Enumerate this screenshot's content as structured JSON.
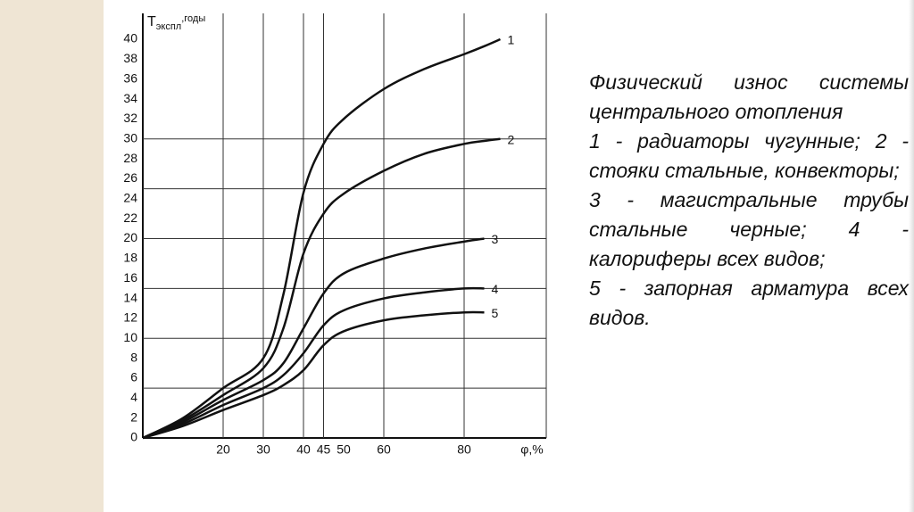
{
  "chart_data": {
    "type": "line",
    "y_label": "Т",
    "y_label_sub": "экспл",
    "y_label_unit": ",годы",
    "x_label": "φ,%",
    "x": [
      0,
      10,
      20,
      30,
      35,
      40,
      45,
      50,
      60,
      70,
      80,
      85,
      89
    ],
    "series": [
      {
        "name": "1",
        "color": "#111111",
        "values": [
          0,
          2,
          5,
          8,
          14.4,
          24.6,
          29.5,
          32,
          35,
          37,
          38.5,
          39.3,
          40
        ]
      },
      {
        "name": "2",
        "color": "#111111",
        "values": [
          0,
          1.8,
          4.3,
          7,
          11,
          18.5,
          22.5,
          24.5,
          26.8,
          28.5,
          29.5,
          29.8,
          30
        ]
      },
      {
        "name": "3",
        "color": "#111111",
        "values": [
          0,
          1.6,
          3.8,
          5.8,
          7.5,
          11,
          14.5,
          16.5,
          18,
          19,
          19.7,
          20,
          null
        ]
      },
      {
        "name": "4",
        "color": "#111111",
        "values": [
          0,
          1.4,
          3.3,
          5,
          6.3,
          8.5,
          11.3,
          12.8,
          14,
          14.6,
          15,
          15,
          null
        ]
      },
      {
        "name": "5",
        "color": "#111111",
        "values": [
          0,
          1.2,
          2.8,
          4.3,
          5.3,
          6.8,
          9.3,
          10.7,
          11.8,
          12.3,
          12.6,
          12.6,
          null
        ]
      }
    ],
    "xlim": [
      0,
      100
    ],
    "ylim": [
      0,
      40
    ],
    "xticks": [
      20,
      30,
      40,
      45,
      50,
      60,
      80
    ],
    "yticks": [
      0,
      2,
      4,
      6,
      8,
      10,
      12,
      14,
      16,
      18,
      20,
      22,
      24,
      26,
      28,
      30,
      32,
      34,
      36,
      38,
      40
    ],
    "xgrid": [
      20,
      30,
      40,
      45,
      60,
      80
    ],
    "ygrid": [
      5,
      10,
      15,
      20,
      25,
      30
    ]
  },
  "caption": [
    "Физический износ системы центрального отопления",
    "1 - радиаторы чугунные; 2 - стояки стальные, конвекторы;",
    "3 - магистральные трубы стальные черные; 4 - калориферы всех видов;",
    "5 - запорная арматура всех видов."
  ]
}
